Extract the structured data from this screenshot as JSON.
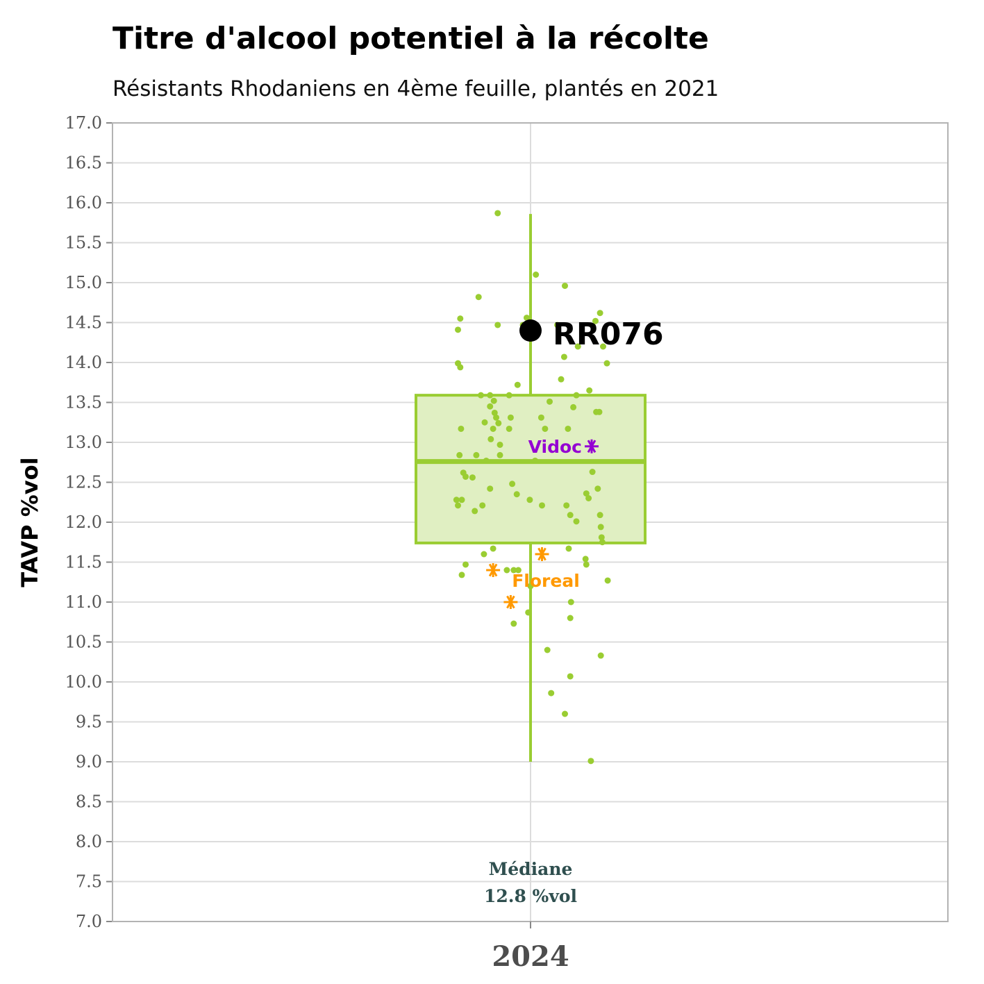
{
  "title": "Titre d'alcool potentiel à la récolte",
  "subtitle": "Résistants Rhodaniens en 4ème feuille, plantés en 2021",
  "chart_data": {
    "type": "box",
    "ylabel": "TAVP %vol",
    "ylim": [
      7.0,
      17.0
    ],
    "yticks": [
      "7.0",
      "7.5",
      "8.0",
      "8.5",
      "9.0",
      "9.5",
      "10.0",
      "10.5",
      "11.0",
      "11.5",
      "12.0",
      "12.5",
      "13.0",
      "13.5",
      "14.0",
      "14.5",
      "15.0",
      "15.5",
      "16.0",
      "16.5",
      "17.0"
    ],
    "categories": [
      "2024"
    ],
    "box": {
      "min": 9.0,
      "q1": 11.74,
      "median": 12.76,
      "q3": 13.59,
      "max": 15.86
    },
    "median_label": [
      "Médiane",
      "12.8 %vol"
    ],
    "points": [
      [
        -0.43,
        15.87
      ],
      [
        0.07,
        15.1
      ],
      [
        0.45,
        14.96
      ],
      [
        -0.68,
        14.82
      ],
      [
        0.91,
        14.62
      ],
      [
        -0.92,
        14.55
      ],
      [
        -0.43,
        14.47
      ],
      [
        -0.1,
        14.47
      ],
      [
        -0.05,
        14.56
      ],
      [
        0.35,
        14.47
      ],
      [
        -0.95,
        14.41
      ],
      [
        0.85,
        14.52
      ],
      [
        0.95,
        14.2
      ],
      [
        0.62,
        14.2
      ],
      [
        0.44,
        14.07
      ],
      [
        1.0,
        13.99
      ],
      [
        -0.95,
        13.99
      ],
      [
        -0.92,
        13.94
      ],
      [
        0.4,
        13.79
      ],
      [
        -0.17,
        13.72
      ],
      [
        0.77,
        13.65
      ],
      [
        -0.65,
        13.59
      ],
      [
        -0.53,
        13.59
      ],
      [
        -0.28,
        13.59
      ],
      [
        0.6,
        13.59
      ],
      [
        0.25,
        13.51
      ],
      [
        -0.48,
        13.52
      ],
      [
        -0.53,
        13.45
      ],
      [
        0.56,
        13.44
      ],
      [
        0.86,
        13.38
      ],
      [
        0.9,
        13.38
      ],
      [
        -0.47,
        13.37
      ],
      [
        -0.45,
        13.31
      ],
      [
        -0.26,
        13.31
      ],
      [
        0.14,
        13.31
      ],
      [
        -0.6,
        13.25
      ],
      [
        -0.42,
        13.24
      ],
      [
        -0.91,
        13.17
      ],
      [
        -0.49,
        13.17
      ],
      [
        -0.28,
        13.17
      ],
      [
        0.19,
        13.17
      ],
      [
        0.49,
        13.17
      ],
      [
        -0.52,
        13.04
      ],
      [
        -0.4,
        12.97
      ],
      [
        -0.93,
        12.84
      ],
      [
        -0.71,
        12.84
      ],
      [
        -0.4,
        12.84
      ],
      [
        -0.58,
        12.77
      ],
      [
        0.06,
        12.77
      ],
      [
        -0.88,
        12.62
      ],
      [
        -0.85,
        12.57
      ],
      [
        -0.76,
        12.56
      ],
      [
        -0.24,
        12.48
      ],
      [
        0.81,
        12.63
      ],
      [
        -0.53,
        12.42
      ],
      [
        0.88,
        12.42
      ],
      [
        -0.18,
        12.35
      ],
      [
        0.73,
        12.36
      ],
      [
        0.76,
        12.3
      ],
      [
        -0.01,
        12.28
      ],
      [
        -0.97,
        12.28
      ],
      [
        -0.9,
        12.28
      ],
      [
        -0.95,
        12.21
      ],
      [
        0.15,
        12.21
      ],
      [
        0.47,
        12.21
      ],
      [
        -0.63,
        12.21
      ],
      [
        -0.73,
        12.14
      ],
      [
        0.52,
        12.09
      ],
      [
        0.91,
        12.09
      ],
      [
        0.6,
        12.01
      ],
      [
        0.92,
        11.94
      ],
      [
        0.93,
        11.81
      ],
      [
        0.94,
        11.75
      ],
      [
        -0.49,
        11.67
      ],
      [
        0.5,
        11.67
      ],
      [
        -0.61,
        11.6
      ],
      [
        0.72,
        11.54
      ],
      [
        0.73,
        11.47
      ],
      [
        -0.85,
        11.47
      ],
      [
        -0.31,
        11.4
      ],
      [
        -0.22,
        11.4
      ],
      [
        -0.16,
        11.4
      ],
      [
        -0.9,
        11.34
      ],
      [
        1.01,
        11.27
      ],
      [
        0.0,
        11.2
      ],
      [
        0.53,
        11.0
      ],
      [
        -0.03,
        10.87
      ],
      [
        0.52,
        10.8
      ],
      [
        -0.22,
        10.73
      ],
      [
        0.22,
        10.4
      ],
      [
        0.92,
        10.33
      ],
      [
        0.52,
        10.07
      ],
      [
        0.27,
        9.86
      ],
      [
        0.45,
        9.6
      ],
      [
        0.79,
        9.01
      ]
    ],
    "highlight": {
      "label": "RR076",
      "x": 0.0,
      "y": 14.4
    },
    "references": [
      {
        "label": "Vidoc",
        "color": "#9400D3",
        "points": [
          [
            0.8,
            12.95
          ]
        ]
      },
      {
        "label": "Floreal",
        "color": "#FF9900",
        "points": [
          [
            -0.49,
            11.4
          ],
          [
            0.15,
            11.6
          ],
          [
            -0.26,
            11.0
          ]
        ]
      }
    ]
  },
  "colors": {
    "box_stroke": "#9ACD32",
    "box_fill": "#E0EFC2",
    "points": "#9ACD32",
    "grid": "#DCDCDC",
    "panel_border": "#B3B3B3"
  }
}
